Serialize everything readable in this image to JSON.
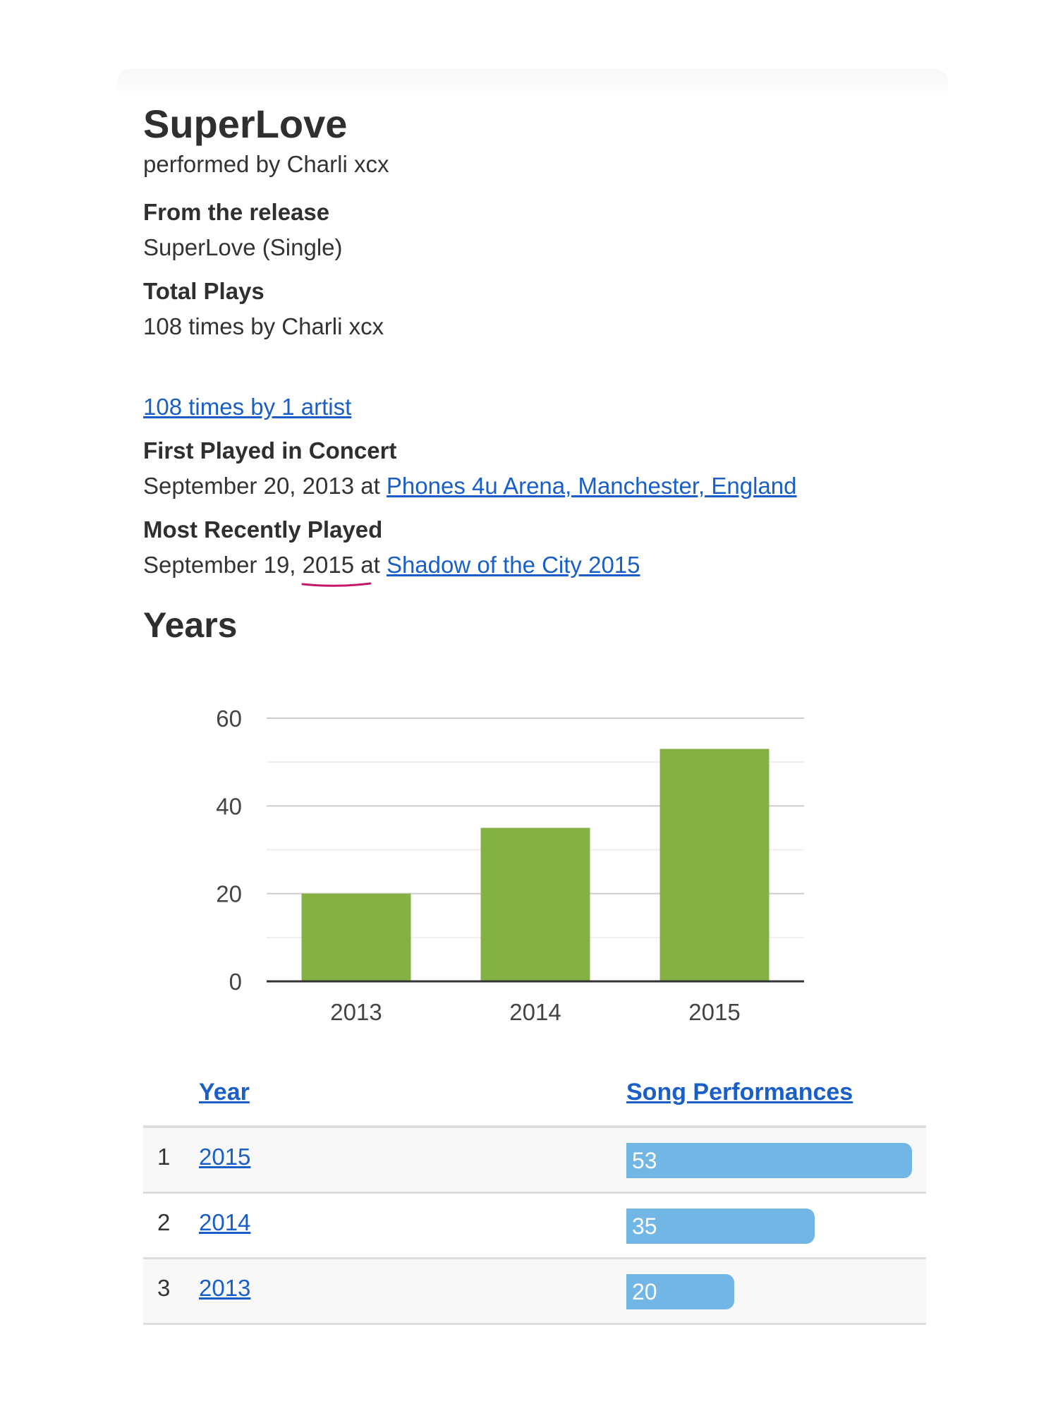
{
  "song": {
    "title": "SuperLove",
    "performer_line": "performed by Charli xcx"
  },
  "release": {
    "label": "From the release",
    "value": "SuperLove (Single)"
  },
  "total_plays": {
    "label": "Total Plays",
    "value": "108 times by Charli xcx"
  },
  "artists_link": "108 times by 1 artist",
  "first_played": {
    "label": "First Played in Concert",
    "date": "September 20, 2013",
    "at": "at",
    "venue": "Phones 4u Arena, Manchester, England"
  },
  "most_recent": {
    "label": "Most Recently Played",
    "date_prefix": "September 19,",
    "date_year": "2015",
    "at": "at",
    "venue": "Shadow of the City 2015",
    "annotation_color": "#c2186b"
  },
  "years_section": {
    "title": "Years"
  },
  "chart_data": {
    "type": "bar",
    "categories": [
      "2013",
      "2014",
      "2015"
    ],
    "values": [
      20,
      35,
      53
    ],
    "title": "",
    "xlabel": "",
    "ylabel": "",
    "ylim": [
      0,
      60
    ],
    "yticks": [
      0,
      20,
      40,
      60
    ],
    "grid": true,
    "bar_color": "#84b044"
  },
  "table": {
    "headers": {
      "year": "Year",
      "performances": "Song Performances"
    },
    "max_value": 53,
    "bar_color": "#72b6e6",
    "rows": [
      {
        "rank": "1",
        "year": "2015",
        "count": 53
      },
      {
        "rank": "2",
        "year": "2014",
        "count": 35
      },
      {
        "rank": "3",
        "year": "2013",
        "count": 20
      }
    ]
  }
}
